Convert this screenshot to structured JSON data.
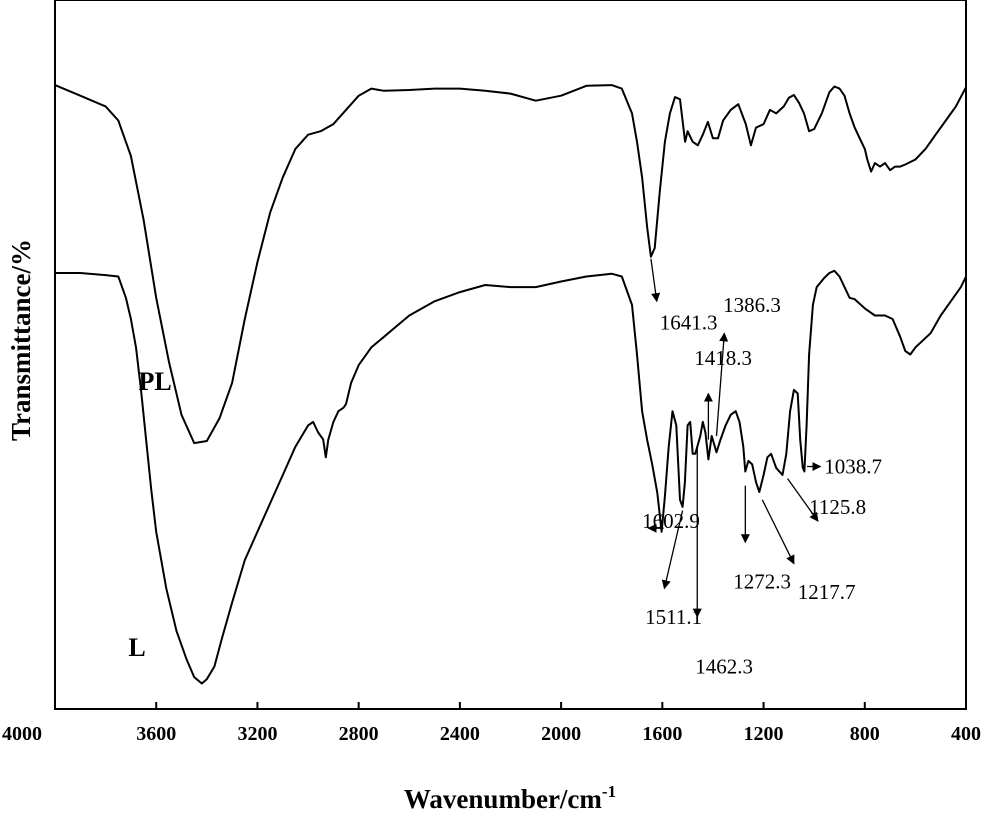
{
  "chart_data": {
    "type": "line",
    "xlabel": "Wavenumber/cm",
    "xlabel_superscript": "-1",
    "ylabel": "Transmittance/%",
    "xlim": [
      4000,
      400
    ],
    "x_reversed": true,
    "x_ticks": [
      "4000",
      "3600",
      "3200",
      "2800",
      "2400",
      "2000",
      "1600",
      "1200",
      "800",
      "400"
    ],
    "y_ticks_shown": false,
    "grid": false,
    "series": [
      {
        "name": "PL",
        "points": [
          [
            4000,
            88
          ],
          [
            3900,
            86.5
          ],
          [
            3800,
            85
          ],
          [
            3750,
            83
          ],
          [
            3700,
            78
          ],
          [
            3650,
            69
          ],
          [
            3600,
            58
          ],
          [
            3550,
            49
          ],
          [
            3500,
            41.5
          ],
          [
            3450,
            37.5
          ],
          [
            3400,
            37.8
          ],
          [
            3350,
            41
          ],
          [
            3300,
            46
          ],
          [
            3250,
            55
          ],
          [
            3200,
            63
          ],
          [
            3150,
            70
          ],
          [
            3100,
            75
          ],
          [
            3050,
            79
          ],
          [
            3000,
            81
          ],
          [
            2950,
            81.5
          ],
          [
            2900,
            82.5
          ],
          [
            2850,
            84.5
          ],
          [
            2800,
            86.5
          ],
          [
            2750,
            87.5
          ],
          [
            2700,
            87.2
          ],
          [
            2600,
            87.3
          ],
          [
            2500,
            87.5
          ],
          [
            2400,
            87.5
          ],
          [
            2300,
            87.2
          ],
          [
            2200,
            86.8
          ],
          [
            2100,
            85.8
          ],
          [
            2000,
            86.5
          ],
          [
            1900,
            87.9
          ],
          [
            1800,
            88
          ],
          [
            1760,
            87.5
          ],
          [
            1720,
            84
          ],
          [
            1700,
            80
          ],
          [
            1680,
            75
          ],
          [
            1660,
            68
          ],
          [
            1645,
            63.8
          ],
          [
            1630,
            65
          ],
          [
            1610,
            73
          ],
          [
            1590,
            80
          ],
          [
            1570,
            84
          ],
          [
            1550,
            86.3
          ],
          [
            1530,
            86
          ],
          [
            1510,
            80
          ],
          [
            1500,
            81.5
          ],
          [
            1480,
            80
          ],
          [
            1460,
            79.5
          ],
          [
            1440,
            81
          ],
          [
            1420,
            82.8
          ],
          [
            1400,
            80.5
          ],
          [
            1380,
            80.5
          ],
          [
            1360,
            83
          ],
          [
            1330,
            84.5
          ],
          [
            1300,
            85.3
          ],
          [
            1270,
            82.5
          ],
          [
            1250,
            79.5
          ],
          [
            1230,
            82
          ],
          [
            1200,
            82.5
          ],
          [
            1175,
            84.5
          ],
          [
            1150,
            84
          ],
          [
            1120,
            85
          ],
          [
            1100,
            86.2
          ],
          [
            1080,
            86.6
          ],
          [
            1060,
            85.5
          ],
          [
            1040,
            84
          ],
          [
            1020,
            81.5
          ],
          [
            1000,
            81.8
          ],
          [
            970,
            84
          ],
          [
            940,
            87
          ],
          [
            920,
            87.8
          ],
          [
            900,
            87.5
          ],
          [
            880,
            86.5
          ],
          [
            860,
            84
          ],
          [
            840,
            82
          ],
          [
            820,
            80.5
          ],
          [
            800,
            79
          ],
          [
            790,
            77.5
          ],
          [
            775,
            75.8
          ],
          [
            760,
            77
          ],
          [
            740,
            76.5
          ],
          [
            720,
            77
          ],
          [
            700,
            76
          ],
          [
            680,
            76.5
          ],
          [
            660,
            76.5
          ],
          [
            640,
            76.8
          ],
          [
            600,
            77.5
          ],
          [
            560,
            79
          ],
          [
            520,
            81
          ],
          [
            480,
            83
          ],
          [
            440,
            85
          ],
          [
            400,
            87.7
          ]
        ]
      },
      {
        "name": "L",
        "points": [
          [
            4000,
            61.5
          ],
          [
            3900,
            61.5
          ],
          [
            3800,
            61.2
          ],
          [
            3750,
            61
          ],
          [
            3720,
            58
          ],
          [
            3700,
            55
          ],
          [
            3680,
            51
          ],
          [
            3660,
            45
          ],
          [
            3640,
            38
          ],
          [
            3620,
            31
          ],
          [
            3600,
            25
          ],
          [
            3560,
            17
          ],
          [
            3520,
            11
          ],
          [
            3480,
            7
          ],
          [
            3450,
            4.5
          ],
          [
            3420,
            3.6
          ],
          [
            3400,
            4.2
          ],
          [
            3370,
            6
          ],
          [
            3340,
            10
          ],
          [
            3300,
            15
          ],
          [
            3250,
            21
          ],
          [
            3200,
            25
          ],
          [
            3150,
            29
          ],
          [
            3100,
            33
          ],
          [
            3050,
            37
          ],
          [
            3000,
            40
          ],
          [
            2980,
            40.5
          ],
          [
            2960,
            39
          ],
          [
            2940,
            38
          ],
          [
            2930,
            35.5
          ],
          [
            2920,
            38
          ],
          [
            2900,
            40.5
          ],
          [
            2880,
            42
          ],
          [
            2860,
            42.5
          ],
          [
            2850,
            43
          ],
          [
            2830,
            46
          ],
          [
            2800,
            48.5
          ],
          [
            2750,
            51
          ],
          [
            2700,
            52.5
          ],
          [
            2650,
            54
          ],
          [
            2600,
            55.5
          ],
          [
            2500,
            57.5
          ],
          [
            2400,
            58.8
          ],
          [
            2300,
            59.8
          ],
          [
            2200,
            59.5
          ],
          [
            2100,
            59.5
          ],
          [
            2000,
            60.3
          ],
          [
            1900,
            61
          ],
          [
            1800,
            61.4
          ],
          [
            1760,
            61
          ],
          [
            1720,
            57
          ],
          [
            1700,
            50
          ],
          [
            1680,
            42
          ],
          [
            1660,
            38
          ],
          [
            1640,
            34.5
          ],
          [
            1620,
            30.5
          ],
          [
            1603,
            25
          ],
          [
            1590,
            30
          ],
          [
            1575,
            37
          ],
          [
            1560,
            42
          ],
          [
            1545,
            40
          ],
          [
            1530,
            29.5
          ],
          [
            1520,
            28.5
          ],
          [
            1511,
            32
          ],
          [
            1500,
            40
          ],
          [
            1490,
            40.5
          ],
          [
            1480,
            36
          ],
          [
            1470,
            36
          ],
          [
            1462,
            37
          ],
          [
            1450,
            38.5
          ],
          [
            1440,
            40.5
          ],
          [
            1430,
            39
          ],
          [
            1418,
            35.2
          ],
          [
            1405,
            38.5
          ],
          [
            1386,
            36.2
          ],
          [
            1370,
            38
          ],
          [
            1350,
            40
          ],
          [
            1330,
            41.5
          ],
          [
            1310,
            42
          ],
          [
            1295,
            40.5
          ],
          [
            1280,
            37
          ],
          [
            1272,
            33.5
          ],
          [
            1260,
            35
          ],
          [
            1245,
            34.5
          ],
          [
            1230,
            32
          ],
          [
            1217,
            30.6
          ],
          [
            1200,
            33
          ],
          [
            1185,
            35.5
          ],
          [
            1170,
            36
          ],
          [
            1150,
            34
          ],
          [
            1125,
            33
          ],
          [
            1110,
            36
          ],
          [
            1095,
            42
          ],
          [
            1080,
            45
          ],
          [
            1065,
            44.5
          ],
          [
            1055,
            38
          ],
          [
            1045,
            34
          ],
          [
            1038.7,
            33.5
          ],
          [
            1030,
            40
          ],
          [
            1020,
            50
          ],
          [
            1005,
            57
          ],
          [
            990,
            59.5
          ],
          [
            960,
            60.8
          ],
          [
            940,
            61.5
          ],
          [
            920,
            61.8
          ],
          [
            900,
            61
          ],
          [
            880,
            59.5
          ],
          [
            860,
            58
          ],
          [
            840,
            57.8
          ],
          [
            800,
            56.5
          ],
          [
            760,
            55.5
          ],
          [
            720,
            55.5
          ],
          [
            690,
            55
          ],
          [
            660,
            52.5
          ],
          [
            640,
            50.5
          ],
          [
            620,
            50
          ],
          [
            600,
            51
          ],
          [
            570,
            52
          ],
          [
            540,
            53
          ],
          [
            500,
            55.5
          ],
          [
            460,
            57.5
          ],
          [
            420,
            59.5
          ],
          [
            400,
            61
          ]
        ]
      }
    ],
    "series_labels": [
      {
        "text": "PL",
        "x": 3670,
        "y": 45
      },
      {
        "text": "L",
        "x": 3710,
        "y": 7.5
      }
    ],
    "annotations": [
      {
        "text": "1641.3",
        "x": 1610,
        "y": 53.5,
        "arrow_from": [
          1645,
          63.5
        ],
        "arrow_to": [
          1622,
          57.5
        ]
      },
      {
        "text": "1602.9",
        "x": 1680,
        "y": 25.5,
        "arrow_from": [
          1595,
          25.5
        ],
        "arrow_to": [
          1655,
          25.5
        ]
      },
      {
        "text": "1511.1",
        "x": 1668,
        "y": 12,
        "arrow_from": [
          1520,
          28
        ],
        "arrow_to": [
          1592,
          17
        ]
      },
      {
        "text": "1462.3",
        "x": 1470,
        "y": 5,
        "arrow_from": [
          1462,
          37
        ],
        "arrow_to": [
          1462,
          13
        ]
      },
      {
        "text": "1418.3",
        "x": 1474,
        "y": 48.5,
        "arrow_from": [
          1418,
          38
        ],
        "arrow_to": [
          1418,
          44.5
        ]
      },
      {
        "text": "1386.3",
        "x": 1360,
        "y": 56,
        "arrow_from": [
          1386,
          38.5
        ],
        "arrow_to": [
          1355,
          53
        ]
      },
      {
        "text": "1272.3",
        "x": 1320,
        "y": 17,
        "arrow_from": [
          1272,
          31.5
        ],
        "arrow_to": [
          1272,
          23.5
        ]
      },
      {
        "text": "1217.7",
        "x": 1065,
        "y": 15.5,
        "arrow_from": [
          1205,
          29.5
        ],
        "arrow_to": [
          1080,
          20.5
        ]
      },
      {
        "text": "1125.8",
        "x": 1020,
        "y": 27.5,
        "arrow_from": [
          1105,
          32.5
        ],
        "arrow_to": [
          985,
          26.5
        ]
      },
      {
        "text": "1038.7",
        "x": 960,
        "y": 33.2,
        "arrow_from": [
          1028,
          34.2
        ],
        "arrow_to": [
          975,
          34.2
        ]
      }
    ]
  }
}
